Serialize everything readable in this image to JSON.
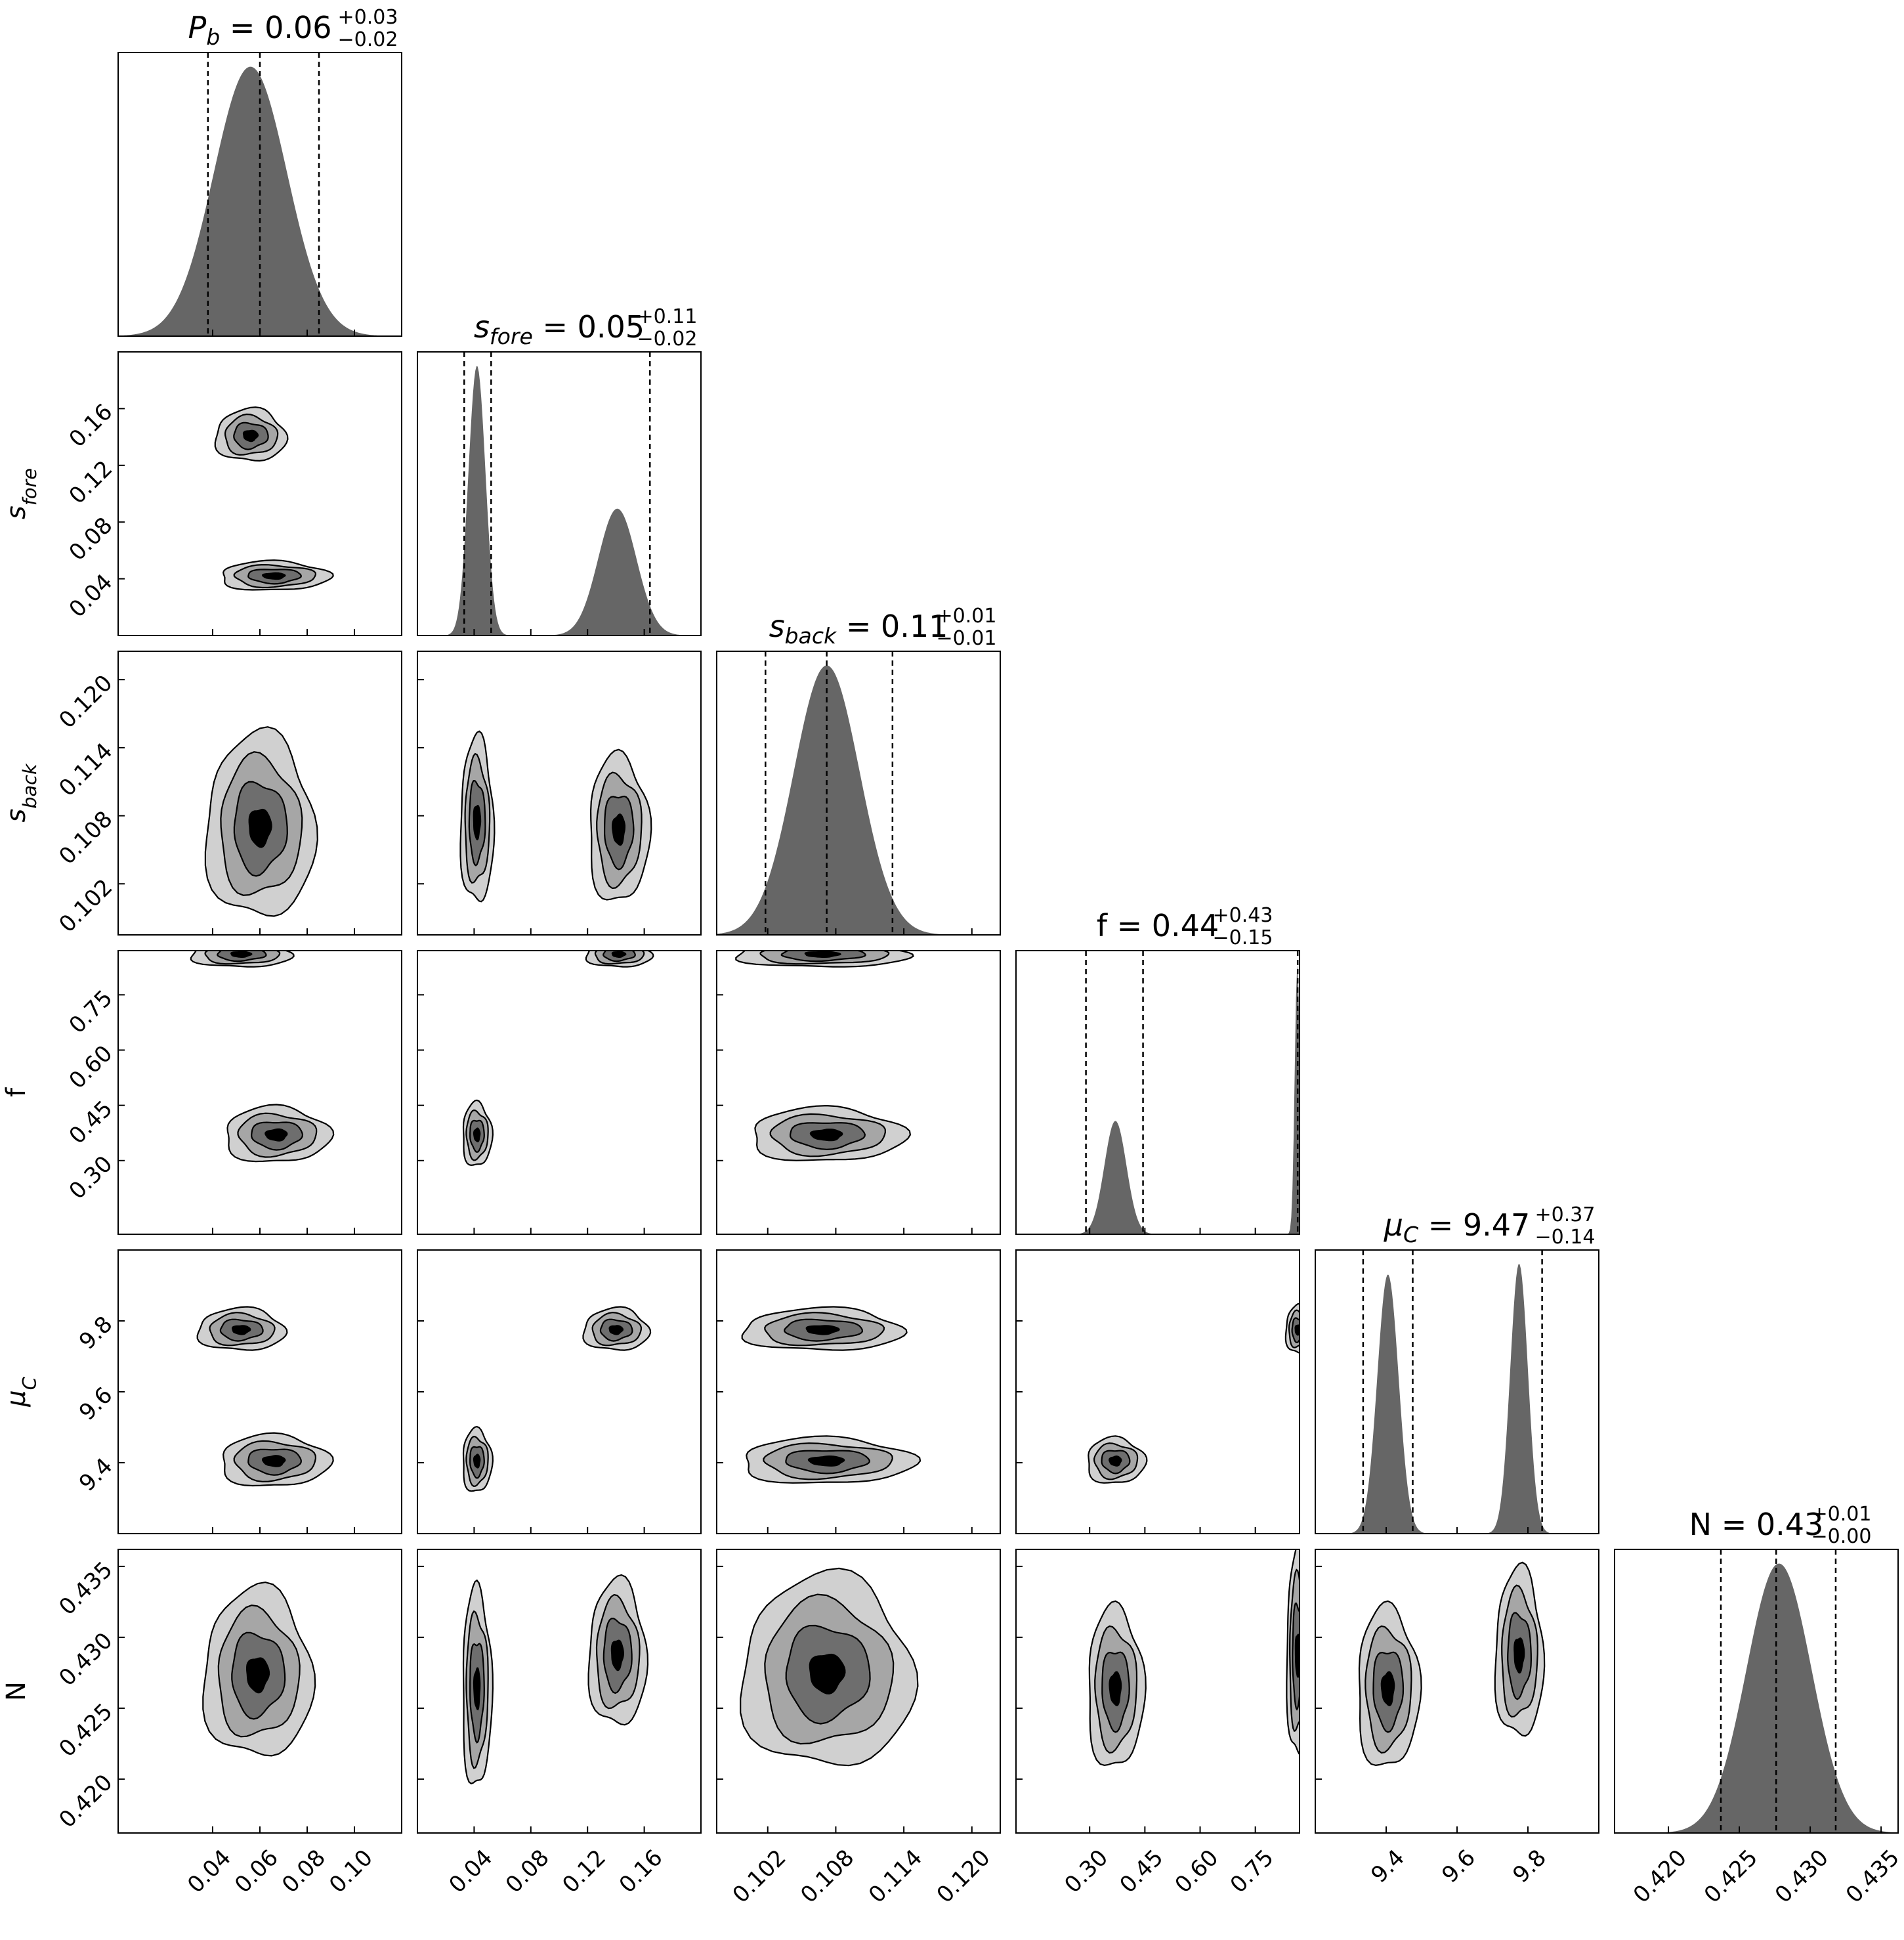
{
  "chart_data": {
    "type": "corner",
    "parameters": [
      {
        "id": "Pb",
        "base": "P",
        "sub": "b",
        "italic": true,
        "median": "0.06",
        "plus": "+0.03",
        "minus": "−0.02",
        "lo": 0.0,
        "hi": 0.12,
        "ticks": [
          0.04,
          0.06,
          0.08,
          0.1
        ],
        "tick_labels": [
          "0.04",
          "0.06",
          "0.08",
          "0.10"
        ],
        "quantiles": [
          0.038,
          0.06,
          0.085
        ],
        "hist": [
          {
            "mu": 0.056,
            "sigma": 0.0155,
            "w": 1.0
          }
        ]
      },
      {
        "id": "sfore",
        "base": "s",
        "sub": "fore",
        "italic": true,
        "median": "0.05",
        "plus": "+0.11",
        "minus": "−0.02",
        "lo": 0.0,
        "hi": 0.2,
        "ticks": [
          0.04,
          0.08,
          0.12,
          0.16
        ],
        "tick_labels": [
          "0.04",
          "0.08",
          "0.12",
          "0.16"
        ],
        "quantiles": [
          0.033,
          0.052,
          0.164
        ],
        "hist": [
          {
            "mu": 0.042,
            "sigma": 0.006,
            "w": 1.0
          },
          {
            "mu": 0.141,
            "sigma": 0.0135,
            "w": 0.47
          }
        ]
      },
      {
        "id": "sback",
        "base": "s",
        "sub": "back",
        "italic": true,
        "median": "0.11",
        "plus": "+0.01",
        "minus": "−0.01",
        "lo": 0.0975,
        "hi": 0.1225,
        "ticks": [
          0.102,
          0.108,
          0.114,
          0.12
        ],
        "tick_labels": [
          "0.102",
          "0.108",
          "0.114",
          "0.120"
        ],
        "quantiles": [
          0.1018,
          0.1072,
          0.113
        ],
        "hist": [
          {
            "mu": 0.1072,
            "sigma": 0.0029,
            "w": 1.0
          }
        ]
      },
      {
        "id": "f",
        "base": "f",
        "sub": "",
        "italic": false,
        "median": "0.44",
        "plus": "+0.43",
        "minus": "−0.15",
        "lo": 0.1,
        "hi": 0.87,
        "ticks": [
          0.3,
          0.45,
          0.6,
          0.75
        ],
        "tick_labels": [
          "0.30",
          "0.45",
          "0.60",
          "0.75"
        ],
        "quantiles": [
          0.29,
          0.445,
          0.865
        ],
        "hist": [
          {
            "mu": 0.37,
            "sigma": 0.03,
            "w": 0.42
          },
          {
            "mu": 0.864,
            "sigma": 0.007,
            "w": 1.0
          }
        ]
      },
      {
        "id": "muC",
        "base": "μ",
        "sub": "C",
        "italic": true,
        "median": "9.47",
        "plus": "+0.37",
        "minus": "−0.14",
        "lo": 9.2,
        "hi": 10.0,
        "ticks": [
          9.4,
          9.6,
          9.8
        ],
        "tick_labels": [
          "9.4",
          "9.6",
          "9.8"
        ],
        "quantiles": [
          9.335,
          9.475,
          9.84
        ],
        "hist": [
          {
            "mu": 9.405,
            "sigma": 0.03,
            "w": 0.96
          },
          {
            "mu": 9.775,
            "sigma": 0.025,
            "w": 1.0
          }
        ]
      },
      {
        "id": "N",
        "base": "N",
        "sub": "",
        "italic": false,
        "median": "0.43",
        "plus": "+0.01",
        "minus": "−0.00",
        "lo": 0.4162,
        "hi": 0.4362,
        "ticks": [
          0.42,
          0.425,
          0.43,
          0.435
        ],
        "tick_labels": [
          "0.420",
          "0.425",
          "0.430",
          "0.435"
        ],
        "quantiles": [
          0.4237,
          0.4276,
          0.4318
        ],
        "hist": [
          {
            "mu": 0.4278,
            "sigma": 0.0023,
            "w": 1.0
          }
        ]
      }
    ],
    "blobs": [
      {
        "row": 1,
        "col": 0,
        "x": 0.056,
        "y": 0.141,
        "sx": 0.0055,
        "sy": 0.0068
      },
      {
        "row": 1,
        "col": 0,
        "x": 0.066,
        "y": 0.042,
        "sx": 0.0085,
        "sy": 0.0038
      },
      {
        "row": 2,
        "col": 0,
        "x": 0.06,
        "y": 0.107,
        "sx": 0.0085,
        "sy": 0.003
      },
      {
        "row": 3,
        "col": 0,
        "x": 0.052,
        "y": 0.86,
        "sx": 0.0078,
        "sy": 0.013
      },
      {
        "row": 3,
        "col": 0,
        "x": 0.067,
        "y": 0.37,
        "sx": 0.0082,
        "sy": 0.028
      },
      {
        "row": 4,
        "col": 0,
        "x": 0.052,
        "y": 9.775,
        "sx": 0.0068,
        "sy": 0.022
      },
      {
        "row": 4,
        "col": 0,
        "x": 0.066,
        "y": 9.405,
        "sx": 0.0085,
        "sy": 0.027
      },
      {
        "row": 5,
        "col": 0,
        "x": 0.059,
        "y": 0.4274,
        "sx": 0.0085,
        "sy": 0.0022
      },
      {
        "row": 2,
        "col": 1,
        "x": 0.042,
        "y": 0.1075,
        "sx": 0.0043,
        "sy": 0.0027
      },
      {
        "row": 2,
        "col": 1,
        "x": 0.142,
        "y": 0.1068,
        "sx": 0.0078,
        "sy": 0.0024
      },
      {
        "row": 3,
        "col": 1,
        "x": 0.142,
        "y": 0.86,
        "sx": 0.0085,
        "sy": 0.013
      },
      {
        "row": 3,
        "col": 1,
        "x": 0.042,
        "y": 0.37,
        "sx": 0.0038,
        "sy": 0.032
      },
      {
        "row": 4,
        "col": 1,
        "x": 0.14,
        "y": 9.775,
        "sx": 0.0085,
        "sy": 0.022
      },
      {
        "row": 4,
        "col": 1,
        "x": 0.042,
        "y": 9.405,
        "sx": 0.0038,
        "sy": 0.033
      },
      {
        "row": 5,
        "col": 1,
        "x": 0.141,
        "y": 0.4288,
        "sx": 0.0075,
        "sy": 0.0019
      },
      {
        "row": 5,
        "col": 1,
        "x": 0.042,
        "y": 0.4264,
        "sx": 0.0038,
        "sy": 0.0026
      },
      {
        "row": 3,
        "col": 2,
        "x": 0.1068,
        "y": 0.86,
        "sx": 0.0028,
        "sy": 0.013
      },
      {
        "row": 3,
        "col": 2,
        "x": 0.1072,
        "y": 0.37,
        "sx": 0.0025,
        "sy": 0.027
      },
      {
        "row": 4,
        "col": 2,
        "x": 0.1068,
        "y": 9.775,
        "sx": 0.0026,
        "sy": 0.022
      },
      {
        "row": 4,
        "col": 2,
        "x": 0.1072,
        "y": 9.405,
        "sx": 0.0028,
        "sy": 0.024
      },
      {
        "row": 5,
        "col": 2,
        "x": 0.1072,
        "y": 0.4275,
        "sx": 0.0028,
        "sy": 0.0025
      },
      {
        "row": 4,
        "col": 3,
        "x": 0.865,
        "y": 9.775,
        "sx": 0.012,
        "sy": 0.025
      },
      {
        "row": 4,
        "col": 3,
        "x": 0.37,
        "y": 9.405,
        "sx": 0.029,
        "sy": 0.024
      },
      {
        "row": 5,
        "col": 3,
        "x": 0.865,
        "y": 0.4288,
        "sx": 0.011,
        "sy": 0.0027
      },
      {
        "row": 5,
        "col": 3,
        "x": 0.37,
        "y": 0.4264,
        "sx": 0.028,
        "sy": 0.0021
      },
      {
        "row": 5,
        "col": 4,
        "x": 9.775,
        "y": 0.4288,
        "sx": 0.025,
        "sy": 0.0022
      },
      {
        "row": 5,
        "col": 4,
        "x": 9.405,
        "y": 0.4264,
        "sx": 0.032,
        "sy": 0.0021
      }
    ],
    "contour_fills": [
      "#d0d0d0",
      "#a6a6a6",
      "#6e6e6e",
      "#000000"
    ],
    "contour_levels": [
      1.75,
      1.3,
      0.85,
      0.35
    ],
    "hist_color": "#666666"
  }
}
